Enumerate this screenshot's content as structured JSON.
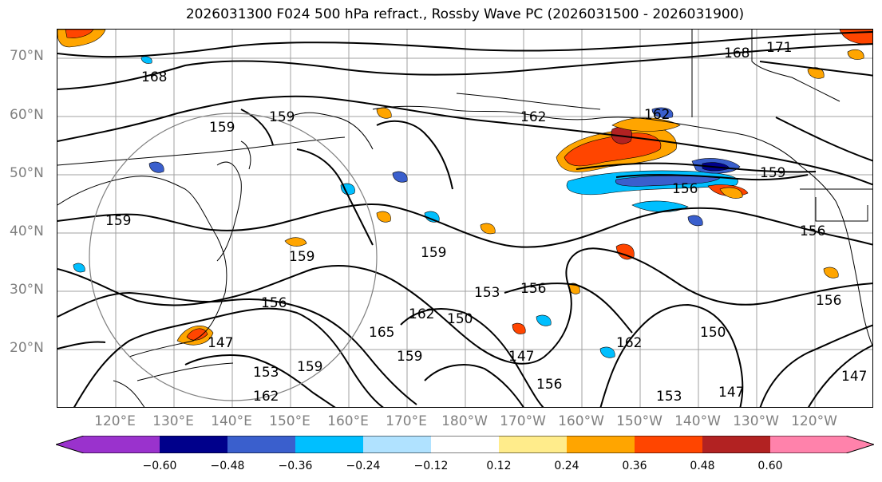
{
  "title": "2026031300 F024 500 hPa refract., Rossby Wave PC (2026031500 - 2026031900)",
  "lat_labels": [
    "70°N",
    "60°N",
    "50°N",
    "40°N",
    "30°N",
    "20°N"
  ],
  "lon_labels": [
    "120°E",
    "130°E",
    "140°E",
    "150°E",
    "160°E",
    "170°E",
    "180°W",
    "170°W",
    "160°W",
    "150°W",
    "140°W",
    "130°W",
    "120°W"
  ],
  "contour_labels": [
    "168",
    "171",
    "168",
    "159",
    "159",
    "162",
    "162",
    "159",
    "156",
    "159",
    "156",
    "159",
    "159",
    "153",
    "156",
    "156",
    "162",
    "165",
    "150",
    "147",
    "162",
    "147",
    "159",
    "150",
    "153",
    "162",
    "156",
    "159",
    "153",
    "147",
    "147",
    "156"
  ],
  "colorbar": {
    "ticks": [
      "−0.60",
      "−0.48",
      "−0.36",
      "−0.24",
      "−0.12",
      "0.12",
      "0.24",
      "0.36",
      "0.48",
      "0.60"
    ],
    "colors": [
      "#9a32cd",
      "#00008b",
      "#3a5fcd",
      "#00bfff",
      "#b0e2ff",
      "#ffffff",
      "#ffec8b",
      "#ffa500",
      "#ff4500",
      "#b22222",
      "#ff82ab"
    ]
  },
  "shading_colors": {
    "neg_dark": "#00008b",
    "neg_mid": "#3a5fcd",
    "neg": "#00bfff",
    "neg_light": "#b0e2ff",
    "pos_light": "#ffec8b",
    "pos": "#ffa500",
    "pos_mid": "#ff4500",
    "pos_dark": "#b22222"
  }
}
